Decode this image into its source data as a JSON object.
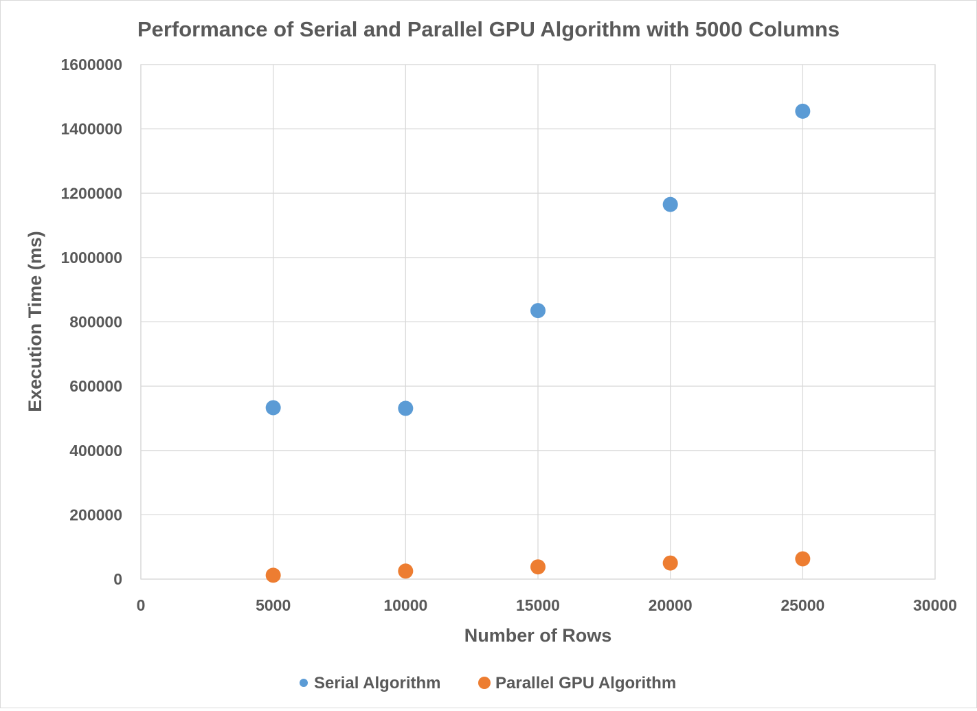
{
  "chart_data": {
    "type": "scatter",
    "title": "Performance of Serial and Parallel GPU Algorithm with 5000 Columns",
    "xlabel": "Number of Rows",
    "ylabel": "Execution Time (ms)",
    "xlim": [
      0,
      30000
    ],
    "ylim": [
      0,
      1600000
    ],
    "x_ticks": [
      0,
      5000,
      10000,
      15000,
      20000,
      25000,
      30000
    ],
    "y_ticks": [
      0,
      200000,
      400000,
      600000,
      800000,
      1000000,
      1200000,
      1400000,
      1600000
    ],
    "grid": "on",
    "legend_position": "bottom",
    "series": [
      {
        "name": "Serial Algorithm",
        "color": "#5b9bd5",
        "points": [
          {
            "x": 5000,
            "y": 533000
          },
          {
            "x": 10000,
            "y": 531000
          },
          {
            "x": 15000,
            "y": 835000
          },
          {
            "x": 20000,
            "y": 1165000
          },
          {
            "x": 25000,
            "y": 1455000
          }
        ]
      },
      {
        "name": "Parallel GPU Algorithm",
        "color": "#ed7d31",
        "points": [
          {
            "x": 5000,
            "y": 12000
          },
          {
            "x": 10000,
            "y": 25000
          },
          {
            "x": 15000,
            "y": 38000
          },
          {
            "x": 20000,
            "y": 50000
          },
          {
            "x": 25000,
            "y": 63000
          }
        ]
      }
    ]
  }
}
